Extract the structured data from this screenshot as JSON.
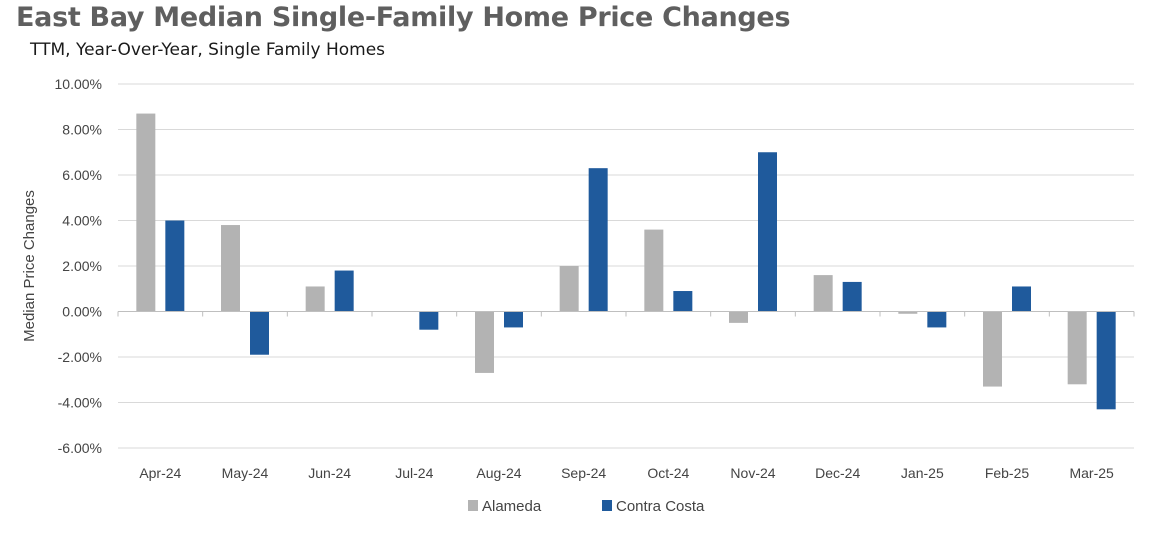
{
  "chart_data": {
    "type": "bar",
    "title": "East Bay Median Single-Family Home Price Changes",
    "subtitle": "TTM, Year-Over-Year, Single Family Homes",
    "xlabel": "",
    "ylabel": "Median Price Changes",
    "categories": [
      "Apr-24",
      "May-24",
      "Jun-24",
      "Jul-24",
      "Aug-24",
      "Sep-24",
      "Oct-24",
      "Nov-24",
      "Dec-24",
      "Jan-25",
      "Feb-25",
      "Mar-25"
    ],
    "series": [
      {
        "name": "Alameda",
        "color": "#b3b3b3",
        "values": [
          8.7,
          3.8,
          1.1,
          0.0,
          -2.7,
          2.0,
          3.6,
          -0.5,
          1.6,
          -0.1,
          -3.3,
          -3.2
        ]
      },
      {
        "name": "Contra Costa",
        "color": "#1f5a9c",
        "values": [
          4.0,
          -1.9,
          1.8,
          -0.8,
          -0.7,
          6.3,
          0.9,
          7.0,
          1.3,
          -0.7,
          1.1,
          -4.3
        ]
      }
    ],
    "ylim": [
      -6,
      10
    ],
    "yticks": [
      -6,
      -4,
      -2,
      0,
      2,
      4,
      6,
      8,
      10
    ],
    "ytick_labels": [
      "-6.00%",
      "-4.00%",
      "-2.00%",
      "0.00%",
      "2.00%",
      "4.00%",
      "6.00%",
      "8.00%",
      "10.00%"
    ],
    "grid": true,
    "legend_position": "bottom"
  }
}
